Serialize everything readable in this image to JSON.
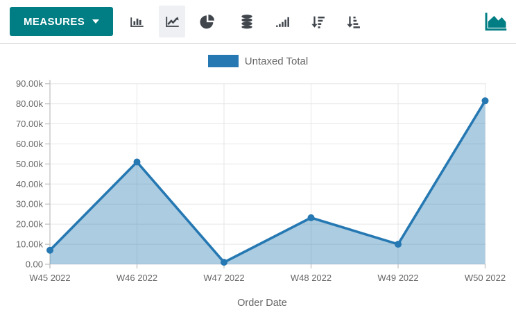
{
  "colors": {
    "accent": "#017e84",
    "series": "#2578b2",
    "grid": "#e6e6e6",
    "axis": "#c2c2c2",
    "tick_text": "#666666"
  },
  "toolbar": {
    "measures_label": "MEASURES",
    "chart_type_buttons": [
      "bar",
      "line",
      "pie"
    ],
    "active_chart_type": "line",
    "other_buttons": [
      "stacked",
      "bars-ascending",
      "sort-descending",
      "sort-ascending"
    ],
    "view_switcher": "graph"
  },
  "chart_data": {
    "type": "line",
    "categories": [
      "W45 2022",
      "W46 2022",
      "W47 2022",
      "W48 2022",
      "W49 2022",
      "W50 2022"
    ],
    "series": [
      {
        "name": "Untaxed Total",
        "values": [
          7000,
          51000,
          1000,
          23200,
          10000,
          81500
        ]
      }
    ],
    "title": "",
    "xlabel": "Order Date",
    "ylabel": "",
    "ylim": [
      0,
      90000
    ],
    "ytick_labels": [
      "0.00",
      "10.00k",
      "20.00k",
      "30.00k",
      "40.00k",
      "50.00k",
      "60.00k",
      "70.00k",
      "80.00k",
      "90.00k"
    ],
    "grid": true,
    "legend_position": "top",
    "area_fill": true
  }
}
